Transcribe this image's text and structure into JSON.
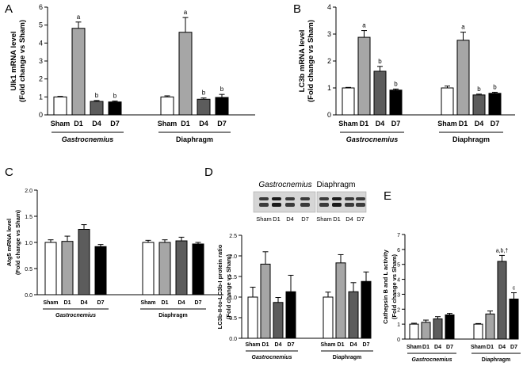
{
  "figure": {
    "group_colors": [
      "#ffffff",
      "#a6a6a6",
      "#5c5c5c",
      "#000000"
    ],
    "border_color": "#000000"
  },
  "chart_data": [
    {
      "panel": "A",
      "type": "bar",
      "ylabel_line1": "Ulk1 mRNA level",
      "ylabel_line2": "(Fold change vs Sham)",
      "ylim": [
        0,
        6
      ],
      "yticks": [
        0,
        1,
        2,
        3,
        4,
        5,
        6
      ],
      "groups": [
        {
          "name": "Gastrocnemius",
          "italic": true,
          "categories": [
            "Sham",
            "D1",
            "D4",
            "D7"
          ],
          "values": [
            1.0,
            4.82,
            0.75,
            0.72
          ],
          "errors": [
            0.03,
            0.35,
            0.05,
            0.05
          ],
          "annotations": [
            "",
            "a",
            "b",
            "b"
          ]
        },
        {
          "name": "Diaphragm",
          "italic": false,
          "categories": [
            "Sham",
            "D1",
            "D4",
            "D7"
          ],
          "values": [
            1.0,
            4.6,
            0.87,
            0.97
          ],
          "errors": [
            0.06,
            0.82,
            0.07,
            0.17
          ],
          "annotations": [
            "",
            "a",
            "b",
            "b"
          ]
        }
      ]
    },
    {
      "panel": "B",
      "type": "bar",
      "ylabel_line1": "LC3b mRNA level",
      "ylabel_line2": "(Fold change vs Sham)",
      "ylim": [
        0,
        4
      ],
      "yticks": [
        0,
        1,
        2,
        3,
        4
      ],
      "groups": [
        {
          "name": "Gastrocnemius",
          "italic": true,
          "categories": [
            "Sham",
            "D1",
            "D4",
            "D7"
          ],
          "values": [
            1.0,
            2.88,
            1.62,
            0.92
          ],
          "errors": [
            0.02,
            0.25,
            0.18,
            0.04
          ],
          "annotations": [
            "",
            "a",
            "b",
            "b"
          ]
        },
        {
          "name": "Diaphragm",
          "italic": false,
          "categories": [
            "Sham",
            "D1",
            "D4",
            "D7"
          ],
          "values": [
            1.0,
            2.77,
            0.74,
            0.8
          ],
          "errors": [
            0.07,
            0.3,
            0.03,
            0.04
          ],
          "annotations": [
            "",
            "a",
            "b",
            "b"
          ]
        }
      ]
    },
    {
      "panel": "C",
      "type": "bar",
      "ylabel_line1": "Atg5 mRNA level",
      "ylabel_line2": "(Fold change vs Sham)",
      "ylim": [
        0,
        2
      ],
      "yticks": [
        "0.0",
        "0.5",
        "1.0",
        "1.5",
        "2.0"
      ],
      "groups": [
        {
          "name": "Gastrocnemius",
          "italic": true,
          "categories": [
            "Sham",
            "D1",
            "D4",
            "D7"
          ],
          "values": [
            1.0,
            1.02,
            1.25,
            0.92
          ],
          "errors": [
            0.05,
            0.1,
            0.09,
            0.04
          ],
          "annotations": [
            "",
            "",
            "",
            ""
          ]
        },
        {
          "name": "Diaphragm",
          "italic": false,
          "categories": [
            "Sham",
            "D1",
            "D4",
            "D7"
          ],
          "values": [
            1.0,
            1.0,
            1.03,
            0.97
          ],
          "errors": [
            0.04,
            0.05,
            0.07,
            0.03
          ],
          "annotations": [
            "",
            "",
            "",
            ""
          ]
        }
      ]
    },
    {
      "panel": "D",
      "type": "bar",
      "ylabel_line1": "LC3b-II-to-LC3b-I protein ratio",
      "ylabel_line2": "(Fold change vs Sham)",
      "ylim": [
        0,
        2.5
      ],
      "yticks": [
        "0.0",
        "0.5",
        "1.0",
        "1.5",
        "2.0",
        "2.5"
      ],
      "blot": {
        "left_title": "Gastrocnemius",
        "right_title": "Diaphragm",
        "lanes": [
          "Sham",
          "D1",
          "D4",
          "D7"
        ]
      },
      "groups": [
        {
          "name": "Gastrocnemius",
          "italic": true,
          "categories": [
            "Sham",
            "D1",
            "D4",
            "D7"
          ],
          "values": [
            1.0,
            1.8,
            0.87,
            1.13
          ],
          "errors": [
            0.24,
            0.3,
            0.12,
            0.4
          ],
          "annotations": [
            "",
            "",
            "",
            ""
          ]
        },
        {
          "name": "Diaphragm",
          "italic": false,
          "categories": [
            "Sham",
            "D1",
            "D4",
            "D7"
          ],
          "values": [
            1.0,
            1.83,
            1.13,
            1.38
          ],
          "errors": [
            0.12,
            0.2,
            0.22,
            0.23
          ],
          "annotations": [
            "",
            "",
            "",
            ""
          ]
        }
      ]
    },
    {
      "panel": "E",
      "type": "bar",
      "ylabel_line1": "Cathepsin B and L activity",
      "ylabel_line2": "(Fold change vs Sham)",
      "ylim": [
        0,
        7
      ],
      "yticks": [
        0,
        1,
        2,
        3,
        4,
        5,
        6,
        7
      ],
      "groups": [
        {
          "name": "Gastrocnemius",
          "italic": true,
          "categories": [
            "Sham",
            "D1",
            "D4",
            "D7"
          ],
          "values": [
            1.0,
            1.12,
            1.35,
            1.62
          ],
          "errors": [
            0.06,
            0.15,
            0.15,
            0.1
          ],
          "annotations": [
            "",
            "",
            "",
            ""
          ]
        },
        {
          "name": "Diaphragm",
          "italic": false,
          "categories": [
            "Sham",
            "D1",
            "D4",
            "D7"
          ],
          "values": [
            1.0,
            1.68,
            5.2,
            2.68
          ],
          "errors": [
            0.04,
            0.2,
            0.4,
            0.42
          ],
          "annotations": [
            "",
            "",
            "a,b,†",
            "c"
          ]
        }
      ]
    }
  ]
}
